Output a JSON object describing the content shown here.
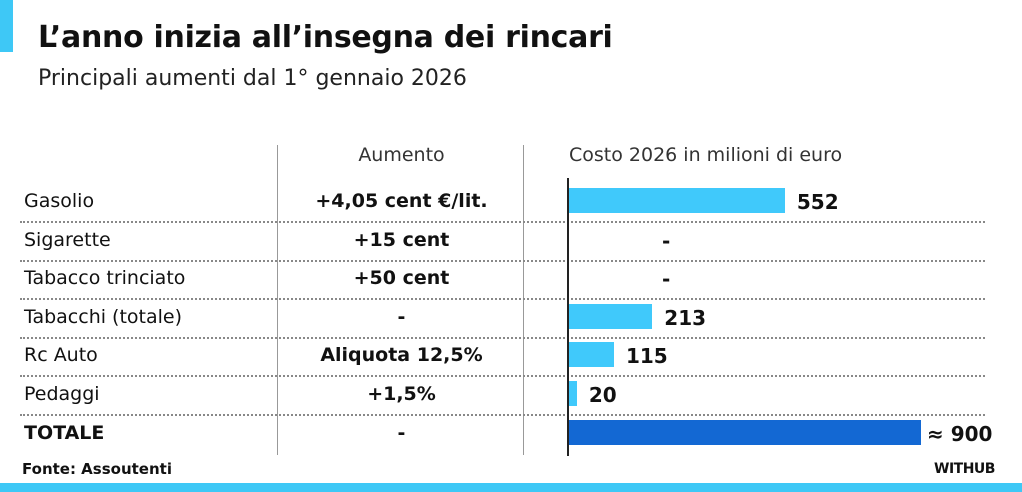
{
  "title": "L’anno inizia all’insegna dei rincari",
  "subtitle": "Principali aumenti dal 1° gennaio 2026",
  "source": "Fonte: Assoutenti",
  "brand": "WITHUB",
  "colors": {
    "accent": "#3ec8f6",
    "bar": "#40c9fb",
    "total_bar": "#1368d3"
  },
  "chart_data": {
    "type": "bar",
    "orientation": "horizontal",
    "columns": [
      "Aumento",
      "Costo 2026 in milioni di euro"
    ],
    "rows": [
      {
        "category": "Gasolio",
        "aumento": "+4,05 cent €/lit.",
        "value": 552,
        "label": "552"
      },
      {
        "category": "Sigarette",
        "aumento": "+15 cent",
        "value": null,
        "label": "-"
      },
      {
        "category": "Tabacco trinciato",
        "aumento": "+50 cent",
        "value": null,
        "label": "-"
      },
      {
        "category": "Tabacchi (totale)",
        "aumento": "-",
        "value": 213,
        "label": "213"
      },
      {
        "category": "Rc Auto",
        "aumento": "Aliquota 12,5%",
        "value": 115,
        "label": "115"
      },
      {
        "category": "Pedaggi",
        "aumento": "+1,5%",
        "value": 20,
        "label": "20"
      },
      {
        "category": "TOTALE",
        "aumento": "-",
        "value": 900,
        "label": "≈ 900",
        "total": true
      }
    ]
  }
}
